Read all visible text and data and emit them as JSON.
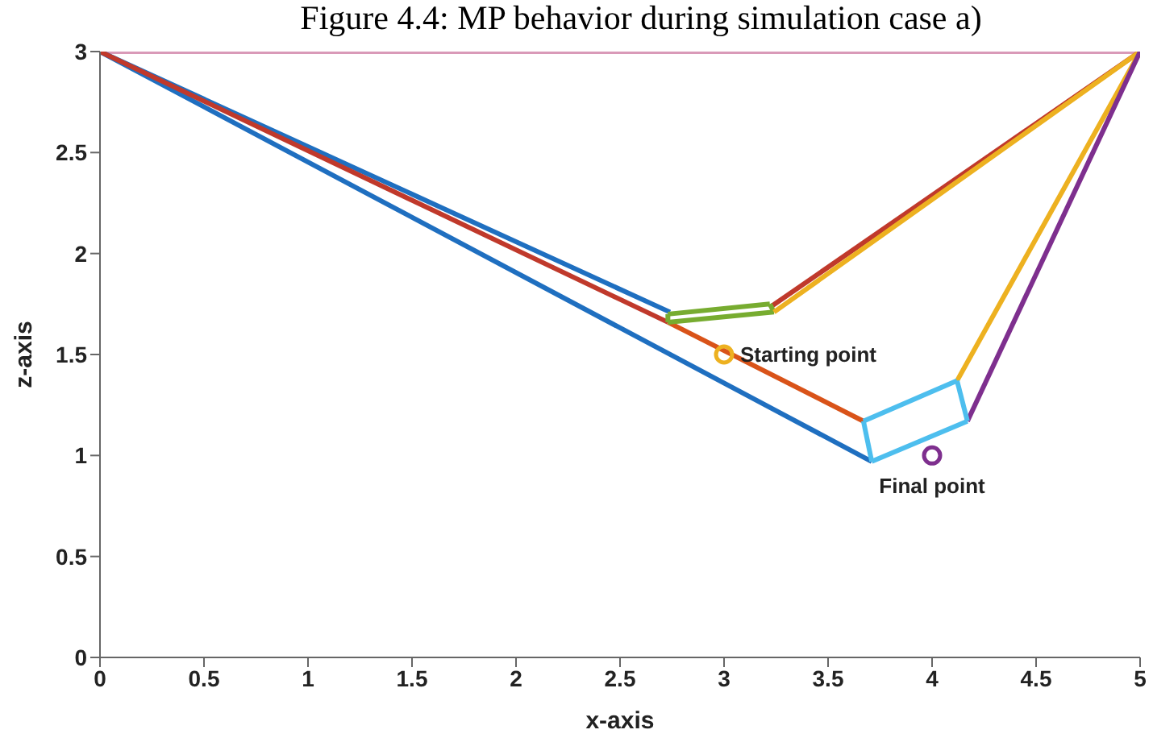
{
  "chart_data": {
    "type": "line",
    "title": "Figure 4.4: MP behavior during simulation case a)",
    "xlabel": "x-axis",
    "ylabel": "z-axis",
    "xlim": [
      0,
      5
    ],
    "ylim": [
      0,
      3
    ],
    "xticks": [
      0,
      0.5,
      1,
      1.5,
      2,
      2.5,
      3,
      3.5,
      4,
      4.5,
      5
    ],
    "yticks": [
      0,
      0.5,
      1,
      1.5,
      2,
      2.5,
      3
    ],
    "grid": false,
    "marker": "none",
    "line_style": "solid",
    "series": [
      {
        "color": "#d99ab8",
        "x": [
          0,
          5
        ],
        "values": [
          3,
          3
        ]
      },
      {
        "color": "#1f6fc0",
        "x": [
          2.74,
          0,
          3.71
        ],
        "values": [
          1.71,
          3,
          0.97
        ]
      },
      {
        "color": "#c0392b",
        "x": [
          0,
          2.73
        ],
        "values": [
          3,
          1.66
        ]
      },
      {
        "color": "#c0392b",
        "x": [
          3.23,
          5
        ],
        "values": [
          1.74,
          3
        ]
      },
      {
        "color": "#d95319",
        "x": [
          2.73,
          3.67
        ],
        "values": [
          1.66,
          1.17
        ]
      },
      {
        "color": "#77ac30",
        "x": [
          2.73,
          2.73
        ],
        "values": [
          1.66,
          1.7
        ]
      },
      {
        "color": "#77ac30",
        "x": [
          2.73,
          3.22
        ],
        "values": [
          1.7,
          1.75
        ]
      },
      {
        "color": "#77ac30",
        "x": [
          3.22,
          3.24
        ],
        "values": [
          1.75,
          1.71
        ]
      },
      {
        "color": "#77ac30",
        "x": [
          2.73,
          3.24
        ],
        "values": [
          1.66,
          1.71
        ]
      },
      {
        "color": "#edb120",
        "x": [
          3.24,
          5,
          4.12
        ],
        "values": [
          1.71,
          3,
          1.37
        ]
      },
      {
        "color": "#7e2f8e",
        "x": [
          5,
          4.17
        ],
        "values": [
          3,
          1.17
        ]
      },
      {
        "color": "#4dbeee",
        "x": [
          3.67,
          4.12
        ],
        "values": [
          1.17,
          1.37
        ]
      },
      {
        "color": "#4dbeee",
        "x": [
          4.12,
          4.17
        ],
        "values": [
          1.37,
          1.17
        ]
      },
      {
        "color": "#4dbeee",
        "x": [
          3.71,
          4.17
        ],
        "values": [
          0.97,
          1.17
        ]
      },
      {
        "color": "#4dbeee",
        "x": [
          3.67,
          3.71
        ],
        "values": [
          1.17,
          0.97
        ]
      },
      {
        "type": "scatter",
        "marker": "circle",
        "color": "#edb120",
        "x": [
          3
        ],
        "values": [
          1.5
        ]
      },
      {
        "type": "scatter",
        "marker": "circle",
        "color": "#7e2f8e",
        "x": [
          4
        ],
        "values": [
          1
        ]
      }
    ],
    "annotations": [
      {
        "text": "Starting point",
        "x": 3,
        "y": 1.5
      },
      {
        "text": "Final point",
        "x": 4,
        "y": 1
      }
    ]
  }
}
